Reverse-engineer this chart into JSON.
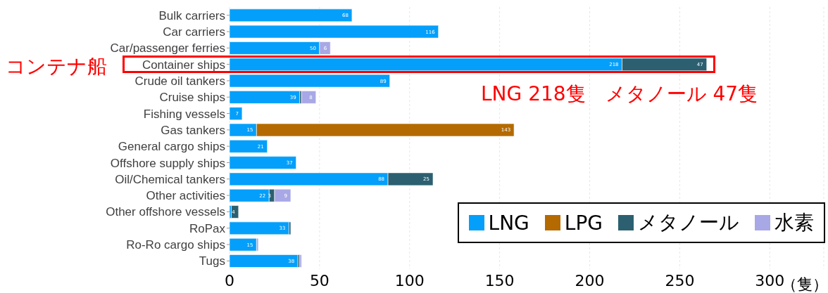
{
  "chart_data": {
    "type": "bar",
    "orientation": "horizontal",
    "stacked": true,
    "categories": [
      "Bulk carriers",
      "Car carriers",
      "Car/passenger ferries",
      "Container ships",
      "Crude oil tankers",
      "Cruise ships",
      "Fishing vessels",
      "Gas tankers",
      "General cargo ships",
      "Offshore supply ships",
      "Oil/Chemical tankers",
      "Other activities",
      "Other offshore vessels",
      "RoPax",
      "Ro-Ro cargo ships",
      "Tugs"
    ],
    "series": [
      {
        "name": "LNG",
        "color": "#049ffa",
        "values": [
          68,
          116,
          50,
          218,
          89,
          39,
          7,
          15,
          21,
          37,
          88,
          22,
          1,
          33,
          15,
          38
        ],
        "value_labels": [
          "68",
          "116",
          "50",
          "218",
          "89",
          "39",
          "7",
          "15",
          "21",
          "37",
          "88",
          "22",
          null,
          "33",
          "15",
          "38"
        ]
      },
      {
        "name": "LPG",
        "color": "#b46a00",
        "values": [
          null,
          null,
          null,
          null,
          null,
          null,
          null,
          143,
          null,
          null,
          null,
          null,
          null,
          null,
          null,
          null
        ],
        "value_labels": [
          null,
          null,
          null,
          null,
          null,
          null,
          null,
          "143",
          null,
          null,
          null,
          null,
          null,
          null,
          null,
          null
        ]
      },
      {
        "name": "メタノール",
        "color": "#2c6070",
        "values": [
          null,
          null,
          null,
          47,
          null,
          1,
          null,
          null,
          null,
          null,
          25,
          3,
          4,
          1,
          null,
          1
        ],
        "value_labels": [
          null,
          null,
          null,
          "47",
          null,
          null,
          null,
          null,
          null,
          null,
          "25",
          "3",
          "4",
          null,
          null,
          null
        ]
      },
      {
        "name": "水素",
        "color": "#a8a8e6",
        "values": [
          null,
          null,
          6,
          null,
          null,
          8,
          null,
          null,
          null,
          null,
          null,
          9,
          null,
          null,
          1,
          1
        ],
        "value_labels": [
          null,
          null,
          "6",
          null,
          null,
          "8",
          null,
          null,
          null,
          null,
          null,
          "9",
          null,
          null,
          null,
          null
        ]
      }
    ],
    "xlim": [
      0,
      330
    ],
    "xticks": [
      0,
      50,
      100,
      150,
      200,
      250,
      300
    ],
    "xlabel": "（隻）",
    "grid": "x",
    "legend": "bottom right",
    "annotations": [
      "コンテナ船",
      "LNG 218隻　メタノール 47隻"
    ]
  }
}
